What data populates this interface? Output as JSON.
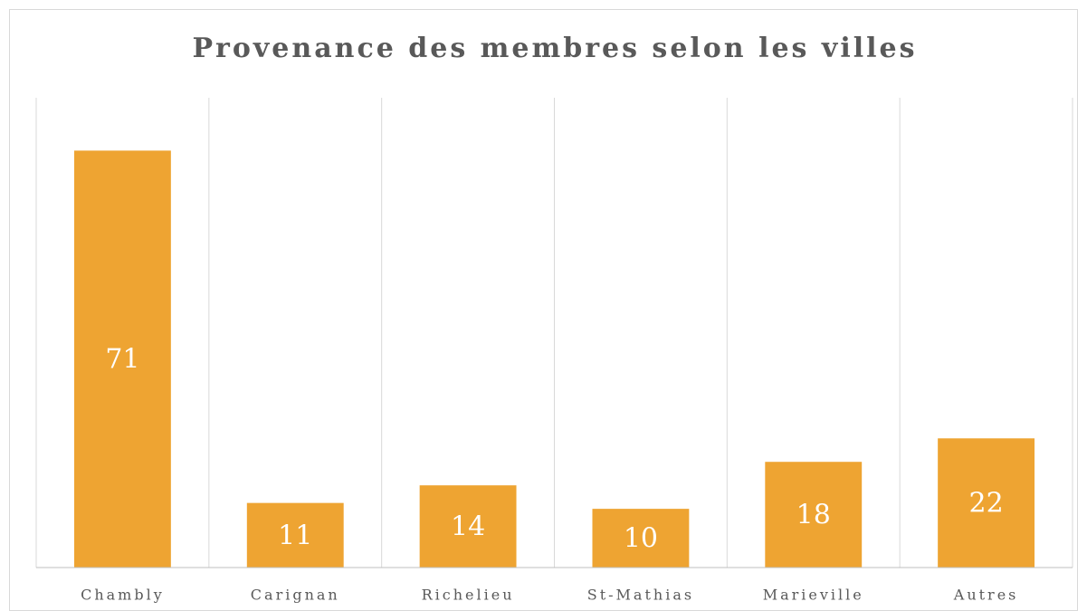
{
  "chart_data": {
    "type": "bar",
    "title": "Provenance des membres selon les villes",
    "categories": [
      "Chambly",
      "Carignan",
      "Richelieu",
      "St-Mathias",
      "Marieville",
      "Autres"
    ],
    "values": [
      71,
      11,
      14,
      10,
      18,
      22
    ],
    "color": "#eea432",
    "ylim": [
      0,
      80
    ],
    "data_labels": true
  }
}
